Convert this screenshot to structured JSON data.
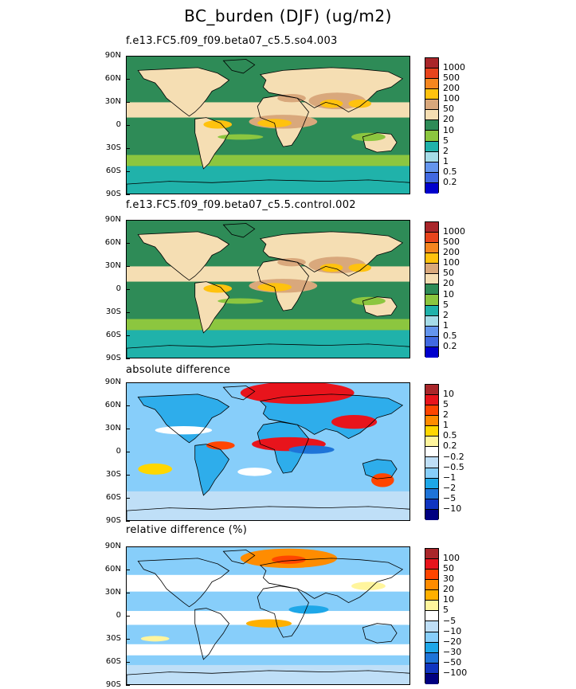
{
  "title": "BC_burden (DJF) (ug/m2)",
  "chart_data": [
    {
      "type": "heatmap",
      "subtitle": "f.e13.FC5.f09_f09.beta07_c5.5.so4.003",
      "ytick_labels": [
        "90N",
        "60N",
        "30N",
        "0",
        "30S",
        "60S",
        "90S"
      ],
      "legend_levels": [
        "1000",
        "500",
        "200",
        "100",
        "50",
        "20",
        "10",
        "5",
        "2",
        "1",
        "0.5",
        "0.2"
      ],
      "colors": [
        "#a9262a",
        "#e8441c",
        "#f5861f",
        "#ffc20e",
        "#d9a87c",
        "#f5deb3",
        "#2e8b57",
        "#8cc63f",
        "#20b2aa",
        "#a6dce8",
        "#6495ed",
        "#4169e1",
        "#0000cd"
      ]
    },
    {
      "type": "heatmap",
      "subtitle": "f.e13.FC5.f09_f09.beta07_c5.5.control.002",
      "ytick_labels": [
        "90N",
        "60N",
        "30N",
        "0",
        "30S",
        "60S",
        "90S"
      ],
      "legend_levels": [
        "1000",
        "500",
        "200",
        "100",
        "50",
        "20",
        "10",
        "5",
        "2",
        "1",
        "0.5",
        "0.2"
      ],
      "colors": [
        "#a9262a",
        "#e8441c",
        "#f5861f",
        "#ffc20e",
        "#d9a87c",
        "#f5deb3",
        "#2e8b57",
        "#8cc63f",
        "#20b2aa",
        "#a6dce8",
        "#6495ed",
        "#4169e1",
        "#0000cd"
      ]
    },
    {
      "type": "heatmap",
      "subtitle": "absolute difference",
      "ytick_labels": [
        "90N",
        "60N",
        "30N",
        "0",
        "30S",
        "60S",
        "90S"
      ],
      "legend_levels": [
        "10",
        "5",
        "2",
        "1",
        "0.5",
        "0.2",
        "−0.2",
        "−0.5",
        "−1",
        "−2",
        "−5",
        "−10"
      ],
      "colors": [
        "#a9262a",
        "#e8141c",
        "#ff4500",
        "#ff8c00",
        "#ffd700",
        "#fff59d",
        "#ffffff",
        "#bfdff7",
        "#87cefa",
        "#1ea7e8",
        "#1e74d8",
        "#1035c0",
        "#000080"
      ]
    },
    {
      "type": "heatmap",
      "subtitle": "relative difference (%)",
      "ytick_labels": [
        "90N",
        "60N",
        "30N",
        "0",
        "30S",
        "60S",
        "90S"
      ],
      "legend_levels": [
        "100",
        "50",
        "30",
        "20",
        "10",
        "5",
        "−5",
        "−10",
        "−20",
        "−30",
        "−50",
        "−100"
      ],
      "colors": [
        "#a9262a",
        "#e8141c",
        "#ff4500",
        "#ff8c00",
        "#ffb000",
        "#fff59d",
        "#ffffff",
        "#bfdff7",
        "#87cefa",
        "#1ea7e8",
        "#1e74d8",
        "#1035c0",
        "#000080"
      ]
    }
  ]
}
